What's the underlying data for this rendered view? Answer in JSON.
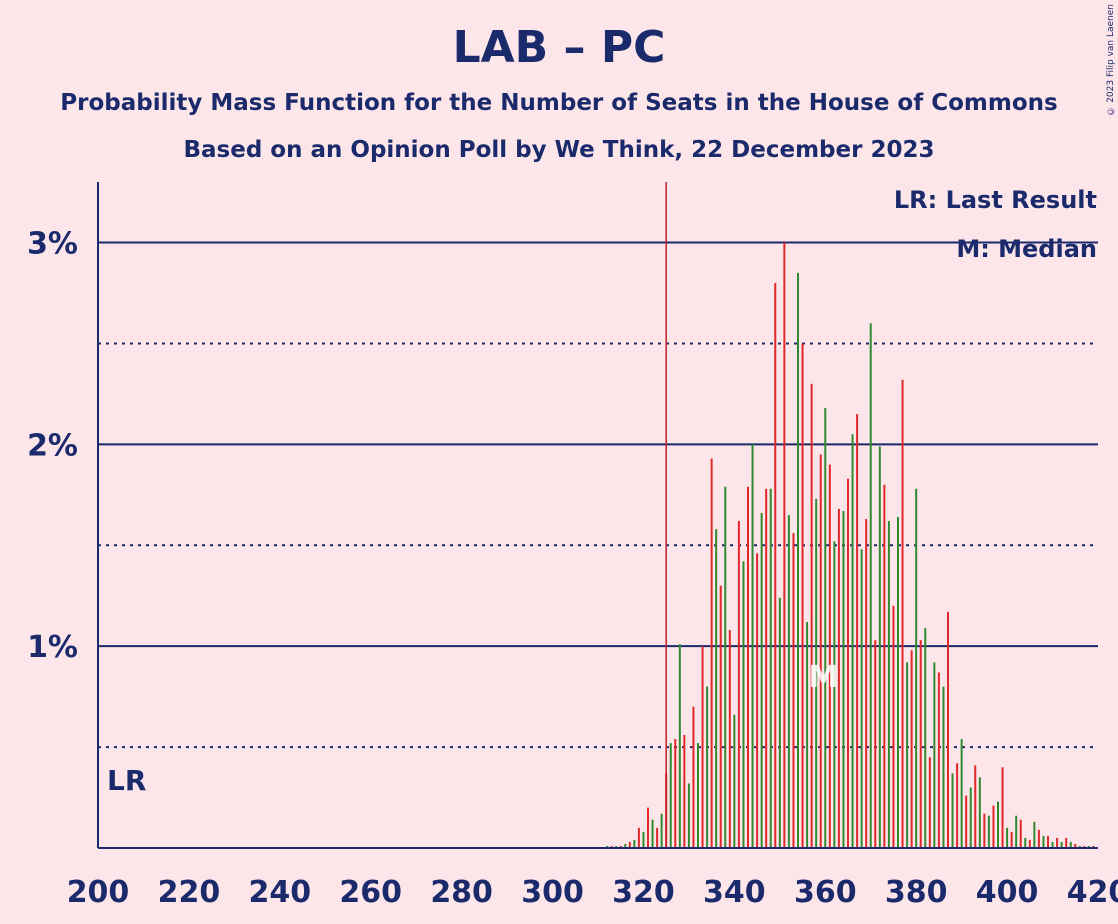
{
  "title": "LAB – PC",
  "subtitle1": "Probability Mass Function for the Number of Seats in the House of Commons",
  "subtitle2": "Based on an Opinion Poll by We Think, 22 December 2023",
  "copyright": "© 2023 Filip van Laenen",
  "legend": {
    "last_result": "LR: Last Result",
    "median": "M: Median"
  },
  "lr_axis_label": "LR",
  "median_marker": "M",
  "colors": {
    "background": "#fde6ea",
    "axis": "#1b2a6b",
    "red": "#e0282a",
    "green": "#2f8a2f",
    "lr_line": "#c0202a"
  },
  "chart_data": {
    "type": "bar",
    "xlim": [
      200,
      420
    ],
    "ylim": [
      0,
      3.3
    ],
    "x_ticks": [
      200,
      220,
      240,
      260,
      280,
      300,
      320,
      340,
      360,
      380,
      400,
      420
    ],
    "y_ticks": [
      {
        "value": 1,
        "label": "1%"
      },
      {
        "value": 2,
        "label": "2%"
      },
      {
        "value": 3,
        "label": "3%"
      }
    ],
    "y_dotted": [
      0.5,
      1.5,
      2.5
    ],
    "last_result": 325,
    "median": 360,
    "series": [
      {
        "color": "red",
        "x": [
          300,
          301,
          302,
          303,
          304,
          305,
          306,
          307,
          308,
          309,
          310,
          311,
          312,
          313,
          314,
          315,
          316,
          317,
          318,
          319,
          320,
          321,
          322,
          323,
          324,
          325,
          326,
          327,
          328,
          329,
          330,
          331,
          332,
          333,
          334,
          335,
          336,
          337,
          338,
          339,
          340,
          341,
          342,
          343,
          344,
          345,
          346,
          347,
          348,
          349,
          350,
          351,
          352,
          353,
          354,
          355,
          356,
          357,
          358,
          359,
          360,
          361,
          362,
          363,
          364,
          365,
          366,
          367,
          368,
          369,
          370,
          371,
          372,
          373,
          374,
          375,
          376,
          377,
          378,
          379,
          380,
          381,
          382,
          383,
          384,
          385,
          386,
          387,
          388,
          389,
          390,
          391,
          392,
          393,
          394,
          395,
          396,
          397,
          398,
          399,
          400,
          401,
          402,
          403,
          404,
          405,
          406,
          407,
          408,
          409,
          410,
          411,
          412,
          413,
          414,
          415,
          416,
          417,
          418,
          419
        ],
        "values": [
          0.0,
          0.0,
          0.0,
          0.0,
          0.0,
          0.0,
          0.0,
          0.0,
          0.0,
          0.0,
          0.0,
          0.0,
          0.01,
          0.01,
          0.01,
          0.01,
          0.02,
          0.03,
          0.04,
          0.1,
          0.08,
          0.2,
          0.14,
          0.1,
          0.17,
          0.37,
          0.52,
          0.54,
          1.01,
          0.56,
          0.32,
          0.7,
          0.52,
          1.0,
          0.8,
          1.93,
          1.58,
          1.3,
          1.79,
          1.08,
          0.66,
          1.62,
          1.42,
          1.79,
          2.0,
          1.46,
          1.66,
          1.78,
          1.78,
          2.8,
          1.24,
          3.0,
          1.65,
          1.56,
          2.85,
          2.5,
          1.12,
          2.3,
          1.73,
          1.95,
          2.18,
          1.9,
          1.52,
          1.68,
          1.67,
          1.83,
          2.05,
          2.15,
          1.48,
          1.63,
          2.6,
          1.03,
          1.99,
          1.8,
          1.62,
          1.2,
          1.64,
          2.32,
          0.92,
          0.98,
          1.78,
          1.03,
          1.09,
          0.45,
          0.92,
          0.87,
          0.8,
          1.17,
          0.37,
          0.42,
          0.54,
          0.26,
          0.3,
          0.41,
          0.35,
          0.17,
          0.16,
          0.21,
          0.23,
          0.4,
          0.1,
          0.08,
          0.16,
          0.14,
          0.05,
          0.04,
          0.13,
          0.09,
          0.06,
          0.06,
          0.03,
          0.05,
          0.03,
          0.05,
          0.03,
          0.02,
          0.01,
          0.01,
          0.01,
          0.01
        ]
      }
    ]
  }
}
